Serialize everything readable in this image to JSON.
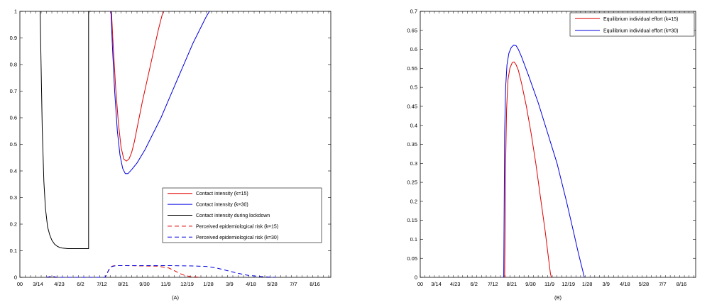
{
  "chart_data": [
    {
      "type": "line",
      "caption": "(A)",
      "x_ticks": [
        "0",
        "0",
        "3/14",
        "4/23",
        "6/2",
        "7/12",
        "8/21",
        "9/30",
        "11/9",
        "12/19",
        "1/28",
        "3/9",
        "4/18",
        "5/28",
        "7/7",
        "8/16"
      ],
      "x_tick_values": [
        0,
        0,
        34,
        74,
        114,
        154,
        194,
        234,
        274,
        314,
        354,
        394,
        434,
        474,
        514,
        554
      ],
      "xlim": [
        0,
        584
      ],
      "ylim": [
        0,
        1
      ],
      "y_ticks": [
        "0",
        "0.1",
        "0.2",
        "0.3",
        "0.4",
        "0.5",
        "0.6",
        "0.7",
        "0.8",
        "0.9",
        "1"
      ],
      "legend_position": "lower-right",
      "series": [
        {
          "name": "Contact intensity (k=15)",
          "color": "#e00000",
          "dash": "solid",
          "x": [
            172,
            175,
            180,
            185,
            190,
            195,
            200,
            205,
            210,
            215,
            220,
            230,
            240,
            250,
            260,
            265,
            269
          ],
          "y": [
            1.0,
            0.88,
            0.71,
            0.58,
            0.49,
            0.445,
            0.437,
            0.445,
            0.47,
            0.51,
            0.56,
            0.66,
            0.75,
            0.84,
            0.93,
            0.97,
            1.0
          ]
        },
        {
          "name": "Contact intensity (k=30)",
          "color": "#0000e0",
          "dash": "solid",
          "x": [
            171,
            174,
            178,
            183,
            188,
            193,
            198,
            203,
            210,
            220,
            235,
            250,
            265,
            280,
            295,
            310,
            325,
            340,
            350,
            356
          ],
          "y": [
            1.0,
            0.86,
            0.7,
            0.55,
            0.46,
            0.41,
            0.39,
            0.39,
            0.405,
            0.43,
            0.48,
            0.54,
            0.6,
            0.67,
            0.74,
            0.81,
            0.88,
            0.94,
            0.98,
            1.0
          ]
        },
        {
          "name": "Contact intensity during lockdown",
          "color": "#000000",
          "dash": "solid",
          "x": [
            38,
            40,
            42,
            45,
            48,
            52,
            56,
            60,
            65,
            70,
            75,
            80,
            90,
            100,
            110,
            120,
            129,
            129,
            130,
            134
          ],
          "y": [
            1.0,
            0.78,
            0.56,
            0.36,
            0.26,
            0.19,
            0.16,
            0.14,
            0.125,
            0.117,
            0.112,
            0.11,
            0.108,
            0.108,
            0.108,
            0.108,
            0.108,
            1.0,
            1.0,
            1.0
          ]
        },
        {
          "name": "Perceived epidemiological risk (k=15)",
          "color": "#e00000",
          "dash": "dashed",
          "x": [
            50,
            60,
            70,
            160,
            163,
            166,
            170,
            175,
            185,
            200,
            230,
            260,
            280,
            290,
            300,
            310,
            320,
            340
          ],
          "y": [
            0.0,
            0.004,
            0.0,
            0.0,
            0.01,
            0.025,
            0.038,
            0.043,
            0.044,
            0.044,
            0.043,
            0.042,
            0.035,
            0.025,
            0.015,
            0.007,
            0.003,
            0.0
          ]
        },
        {
          "name": "Perceived epidemiological risk (k=30)",
          "color": "#0000e0",
          "dash": "dashed",
          "x": [
            50,
            60,
            70,
            160,
            163,
            167,
            172,
            180,
            200,
            240,
            280,
            320,
            350,
            370,
            390,
            410,
            430,
            460,
            480
          ],
          "y": [
            0.0,
            0.004,
            0.0,
            0.0,
            0.012,
            0.028,
            0.04,
            0.044,
            0.044,
            0.044,
            0.044,
            0.043,
            0.041,
            0.035,
            0.025,
            0.015,
            0.007,
            0.002,
            0.0
          ]
        }
      ]
    },
    {
      "type": "line",
      "caption": "(B)",
      "x_ticks": [
        "0",
        "0",
        "3/14",
        "4/23",
        "6/2",
        "7/12",
        "8/21",
        "9/30",
        "11/9",
        "12/19",
        "1/28",
        "3/9",
        "4/18",
        "5/28",
        "7/7",
        "8/16"
      ],
      "x_tick_values": [
        0,
        0,
        34,
        74,
        114,
        154,
        194,
        234,
        274,
        314,
        354,
        394,
        434,
        474,
        514,
        554
      ],
      "xlim": [
        0,
        584
      ],
      "ylim": [
        0,
        0.7
      ],
      "y_ticks": [
        "0",
        "0.05",
        "0.1",
        "0.15",
        "0.2",
        "0.25",
        "0.3",
        "0.35",
        "0.4",
        "0.45",
        "0.5",
        "0.55",
        "0.6",
        "0.65",
        "0.7"
      ],
      "legend_position": "top-right",
      "series": [
        {
          "name": "Equilibrium individual effort (k=15)",
          "color": "#e00000",
          "dash": "solid",
          "x": [
            179,
            180,
            181,
            183,
            186,
            190,
            195,
            199,
            203,
            208,
            215,
            225,
            235,
            245,
            255,
            265,
            272,
            276,
            278
          ],
          "y": [
            0.0,
            0.15,
            0.3,
            0.44,
            0.52,
            0.55,
            0.565,
            0.567,
            0.56,
            0.545,
            0.51,
            0.45,
            0.38,
            0.3,
            0.21,
            0.12,
            0.05,
            0.01,
            0.0
          ]
        },
        {
          "name": "Equilibrium individual effort (k=30)",
          "color": "#0000e0",
          "dash": "solid",
          "x": [
            177,
            178,
            179,
            181,
            184,
            188,
            193,
            198,
            203,
            208,
            215,
            230,
            250,
            270,
            290,
            310,
            325,
            335,
            340,
            346,
            348
          ],
          "y": [
            0.0,
            0.2,
            0.38,
            0.5,
            0.56,
            0.59,
            0.605,
            0.611,
            0.61,
            0.6,
            0.58,
            0.53,
            0.46,
            0.38,
            0.3,
            0.2,
            0.12,
            0.065,
            0.04,
            0.01,
            0.0
          ]
        }
      ]
    }
  ]
}
